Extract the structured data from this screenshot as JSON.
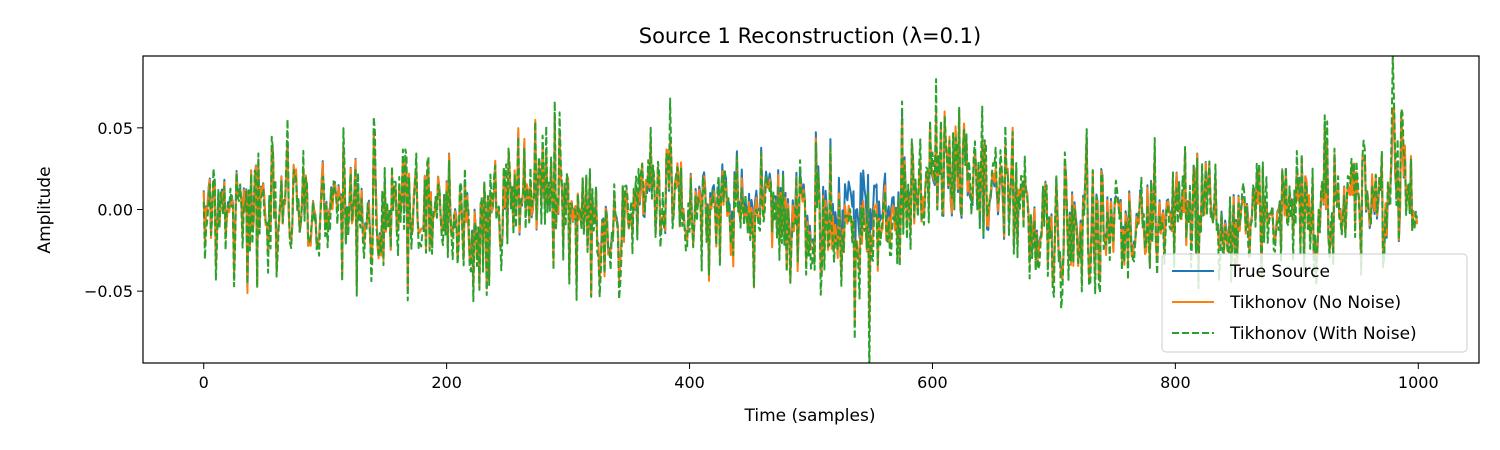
{
  "chart_data": {
    "type": "line",
    "title": "Source 1 Reconstruction (λ=0.1)",
    "xlabel": "Time (samples)",
    "ylabel": "Amplitude",
    "xlim": [
      -50,
      1050
    ],
    "ylim": [
      -0.094,
      0.094
    ],
    "x_ticks": [
      0,
      200,
      400,
      600,
      800,
      1000
    ],
    "x_tick_labels": [
      "0",
      "200",
      "400",
      "600",
      "800",
      "1000"
    ],
    "y_ticks": [
      -0.05,
      0.0,
      0.05
    ],
    "y_tick_labels": [
      "−0.05",
      "0.00",
      "0.05"
    ],
    "grid": false,
    "legend_position": "lower-right",
    "series_points": 1000,
    "x_sample_step": 20,
    "x": [
      0,
      20,
      40,
      60,
      80,
      100,
      120,
      140,
      160,
      180,
      200,
      220,
      240,
      260,
      280,
      300,
      320,
      340,
      360,
      380,
      400,
      420,
      440,
      460,
      480,
      500,
      520,
      540,
      560,
      580,
      600,
      620,
      640,
      660,
      680,
      700,
      720,
      740,
      760,
      780,
      800,
      820,
      840,
      860,
      880,
      900,
      920,
      940,
      960,
      980,
      1000
    ],
    "series": [
      {
        "name": "True Source",
        "color": "#1f77b4",
        "style": "solid",
        "values": [
          -0.005,
          0.004,
          -0.008,
          0.006,
          0.002,
          -0.004,
          0.003,
          -0.01,
          0.008,
          -0.006,
          0.004,
          -0.012,
          0.002,
          0.01,
          0.015,
          0.006,
          -0.008,
          -0.015,
          0.004,
          0.012,
          0.01,
          0.006,
          0.004,
          0.008,
          0.004,
          -0.006,
          -0.004,
          0.003,
          0.002,
          0.008,
          0.018,
          0.02,
          0.015,
          0.01,
          -0.002,
          -0.012,
          -0.008,
          -0.004,
          -0.01,
          -0.006,
          0.001,
          0.004,
          -0.006,
          -0.004,
          -0.002,
          0.006,
          0.005,
          0.002,
          0.004,
          0.008,
          0.003
        ]
      },
      {
        "name": "Tikhonov (No Noise)",
        "color": "#ff7f0e",
        "style": "solid",
        "values": [
          -0.006,
          0.002,
          -0.009,
          0.005,
          0.003,
          -0.006,
          0.002,
          -0.012,
          0.009,
          -0.006,
          0.003,
          -0.014,
          0.003,
          0.012,
          0.016,
          0.007,
          -0.009,
          -0.017,
          0.006,
          0.014,
          0.009,
          0.002,
          -0.002,
          0.004,
          0.001,
          -0.01,
          -0.012,
          -0.018,
          -0.006,
          0.006,
          0.02,
          0.022,
          0.018,
          0.012,
          -0.003,
          -0.014,
          -0.01,
          -0.006,
          -0.012,
          -0.008,
          0.0,
          0.003,
          -0.008,
          -0.005,
          -0.003,
          0.005,
          0.006,
          0.001,
          0.006,
          0.01,
          0.002
        ]
      },
      {
        "name": "Tikhonov (With Noise)",
        "color": "#2ca02c",
        "style": "dashed",
        "values": [
          -0.008,
          0.001,
          -0.011,
          0.004,
          0.004,
          -0.007,
          0.001,
          -0.013,
          0.011,
          -0.007,
          0.002,
          -0.016,
          0.004,
          0.013,
          0.017,
          0.008,
          -0.01,
          -0.018,
          0.007,
          0.016,
          0.008,
          0.001,
          -0.003,
          0.003,
          0.0,
          -0.012,
          -0.015,
          -0.022,
          -0.008,
          0.005,
          0.022,
          0.024,
          0.02,
          0.013,
          -0.004,
          -0.016,
          -0.011,
          -0.007,
          -0.013,
          -0.009,
          -0.001,
          0.002,
          -0.009,
          -0.006,
          -0.004,
          0.004,
          0.007,
          0.0,
          0.007,
          0.012,
          0.001
        ]
      }
    ]
  }
}
